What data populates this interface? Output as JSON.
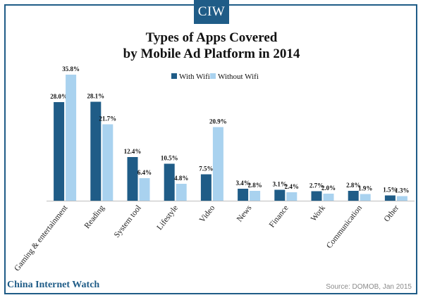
{
  "logo": {
    "text": "CIW"
  },
  "title": {
    "line1": "Types of Apps Covered",
    "line2": "by Mobile Ad Platform in 2014"
  },
  "footer": {
    "brand": "China Internet Watch",
    "source": "Source: DOMOB, Jan 2015"
  },
  "colors": {
    "with_wifi": "#1f5c87",
    "without_wifi": "#a9d2ef",
    "frame": "#1f5c87"
  },
  "chart_data": {
    "type": "bar",
    "title": "Types of Apps Covered by Mobile Ad Platform in 2014",
    "xlabel": "",
    "ylabel": "",
    "ylim": [
      0,
      40
    ],
    "grid": false,
    "legend_position": "top-center",
    "categories": [
      "Gaming & entertainment",
      "Reading",
      "System tool",
      "Lifestyle",
      "Video",
      "News",
      "Finance",
      "Work",
      "Communication",
      "Other"
    ],
    "series": [
      {
        "name": "With Wifi",
        "values": [
          28.0,
          28.1,
          12.4,
          10.5,
          7.5,
          3.4,
          3.1,
          2.7,
          2.8,
          1.5
        ],
        "labels": [
          "28.0%",
          "28.1%",
          "12.4%",
          "10.5%",
          "7.5%",
          "3.4%",
          "3.1%",
          "2.7%",
          "2.8%",
          "1.5%"
        ]
      },
      {
        "name": "Without Wifi",
        "values": [
          35.8,
          21.7,
          6.4,
          4.8,
          20.9,
          2.8,
          2.4,
          2.0,
          1.9,
          1.3
        ],
        "labels": [
          "35.8%",
          "21.7%",
          "6.4%",
          "4.8%",
          "20.9%",
          "2.8%",
          "2.4%",
          "2.0%",
          "1.9%",
          "1.3%"
        ]
      }
    ]
  }
}
